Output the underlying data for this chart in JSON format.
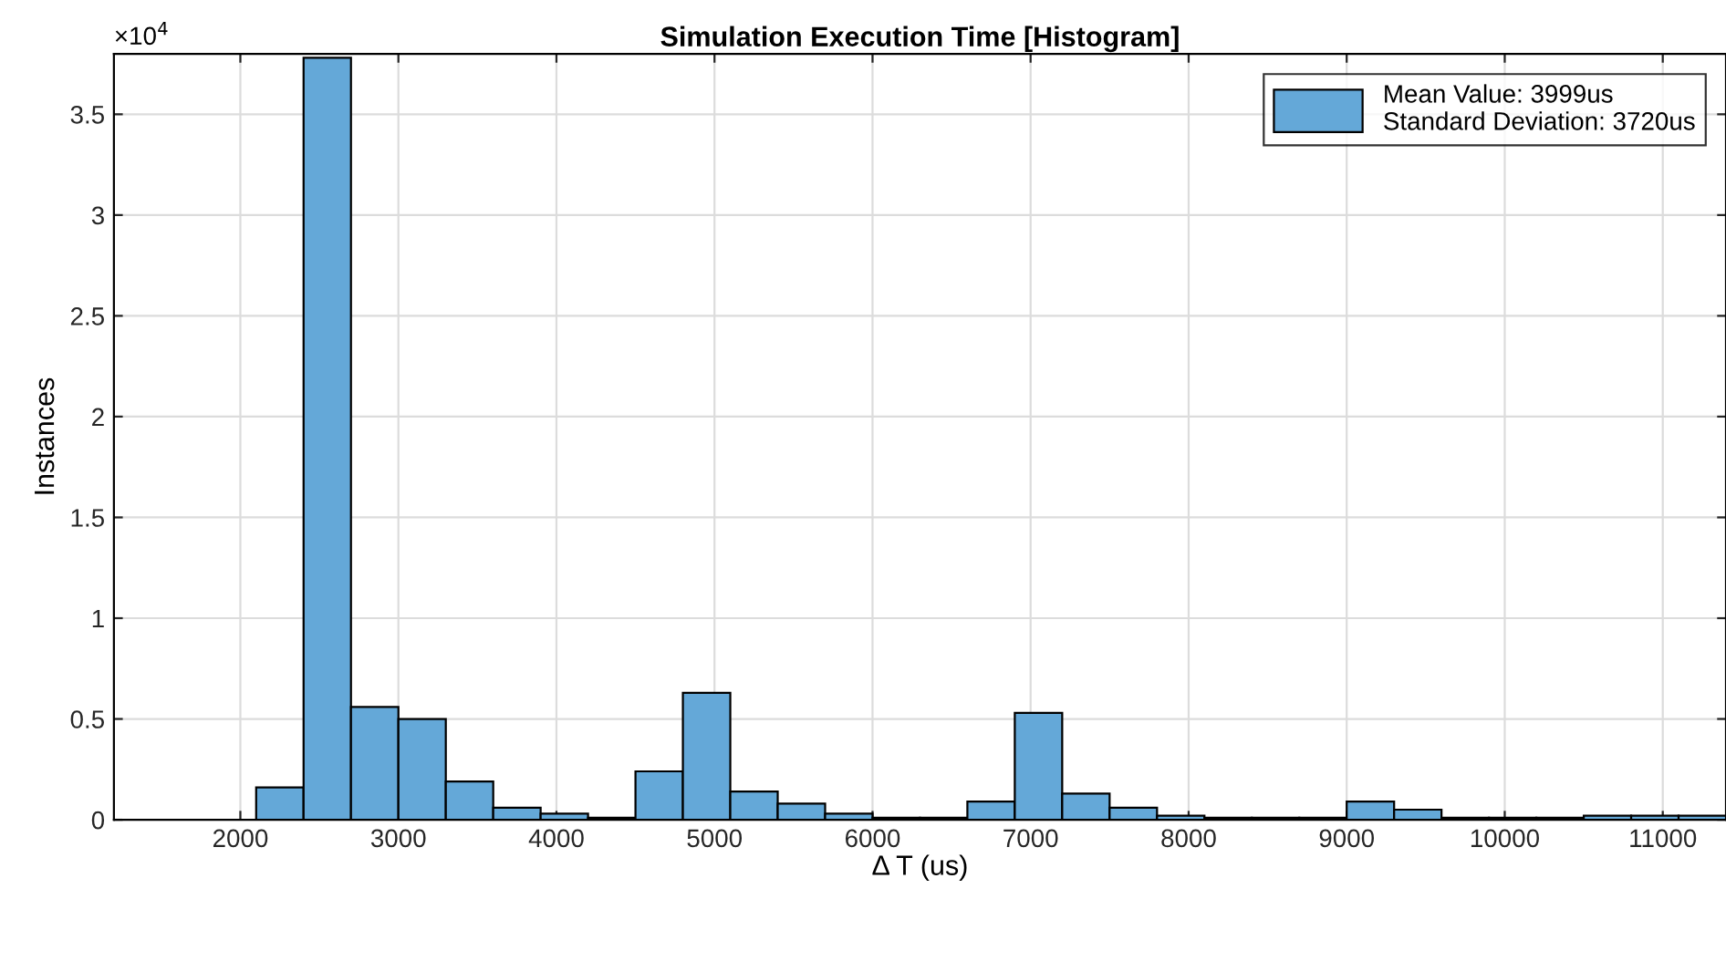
{
  "chart_data": {
    "type": "histogram",
    "title": "Simulation Execution Time [Histogram]",
    "xlabel": "Δ T (us)",
    "ylabel": "Instances",
    "bins": [
      1200,
      1500,
      1800,
      2100,
      2400,
      2700,
      3000,
      3300,
      3600,
      3900,
      4200,
      4500,
      4800,
      5100,
      5400,
      5700,
      6000,
      6300,
      6600,
      6900,
      7200,
      7500,
      7800,
      8100,
      8400,
      8700,
      9000,
      9300,
      9600,
      9900,
      10200,
      10500,
      10800,
      11100,
      11400
    ],
    "series": [
      {
        "name": "Mean Value: 3999us\nStandard Deviation: 3720us",
        "color": "#64a8d8",
        "values": [
          null,
          null,
          null,
          0.16,
          3.78,
          0.56,
          0.5,
          0.19,
          0.06,
          0.03,
          0.01,
          0.24,
          0.63,
          0.14,
          0.08,
          0.03,
          0.01,
          0.01,
          0.09,
          0.53,
          0.13,
          0.06,
          0.02,
          0.01,
          0.01,
          0.01,
          0.09,
          0.05,
          0.01,
          0.01,
          0.01,
          0.02,
          0.02,
          0.02
        ]
      }
    ],
    "xlim": [
      1200,
      11400
    ],
    "ylim": [
      0,
      3.8
    ],
    "xticks": [
      2000,
      3000,
      4000,
      5000,
      6000,
      7000,
      8000,
      9000,
      10000,
      11000
    ],
    "yticks": [
      0,
      0.5,
      1,
      1.5,
      2,
      2.5,
      3,
      3.5
    ],
    "annotations": [
      "×10$^{4}$"
    ],
    "grid": true,
    "legend": "top right"
  }
}
